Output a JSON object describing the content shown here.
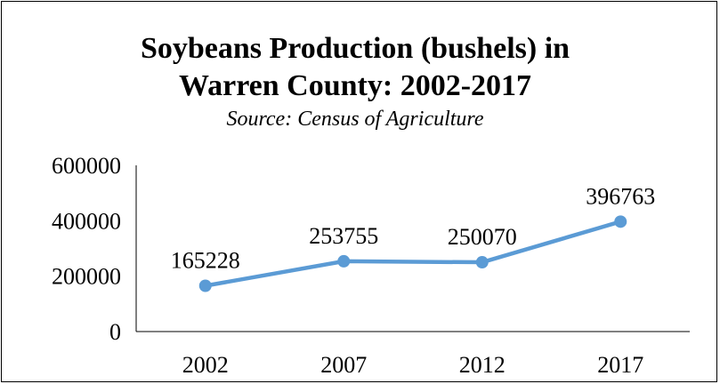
{
  "chart_data": {
    "type": "line",
    "title_line1": "Soybeans Production (bushels) in",
    "title_line2": "Warren County: 2002-2017",
    "subtitle": "Source: Census of Agriculture",
    "categories": [
      "2002",
      "2007",
      "2012",
      "2017"
    ],
    "series": [
      {
        "values": [
          165228,
          253755,
          250070,
          396763
        ],
        "color": "#5B9BD5"
      }
    ],
    "data_labels": [
      "165228",
      "253755",
      "250070",
      "396763"
    ],
    "y_ticks": [
      "0",
      "200000",
      "400000",
      "600000"
    ],
    "ylim": [
      0,
      600000
    ],
    "grid": false,
    "legend": "none"
  }
}
